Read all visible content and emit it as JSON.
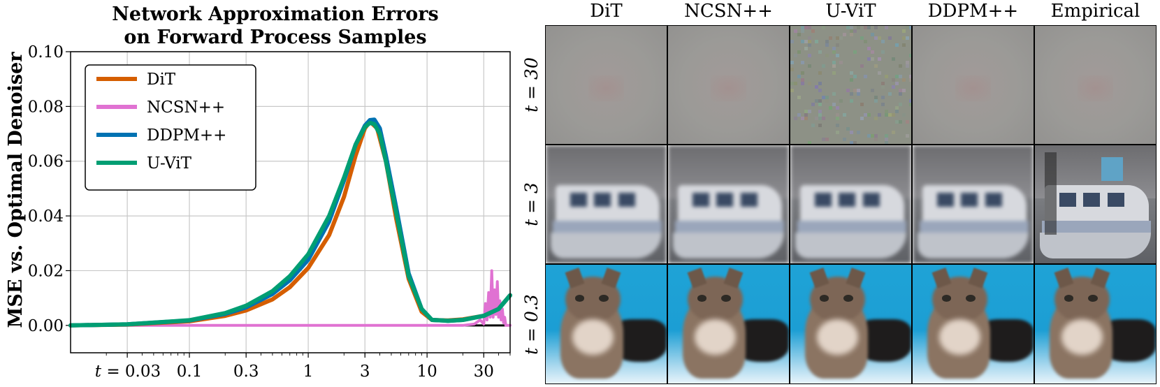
{
  "chart_data": {
    "type": "line",
    "title": "Network Approximation Errors\non Forward Process Samples",
    "title_lines": [
      "Network Approximation Errors",
      "on Forward Process Samples"
    ],
    "xlabel": "",
    "ylabel": "MSE vs. Optimal Denoiser",
    "x_scale": "log",
    "xlim": [
      0.01,
      50
    ],
    "ylim": [
      -0.01,
      0.1
    ],
    "grid": true,
    "legend_position": "top-left",
    "x_ticks": [
      0.03,
      0.1,
      0.3,
      1,
      3,
      10,
      30
    ],
    "x_tick_labels": [
      "t = 0.03",
      "0.1",
      "0.3",
      "1",
      "3",
      "10",
      "30"
    ],
    "y_ticks": [
      0.0,
      0.02,
      0.04,
      0.06,
      0.08,
      0.1
    ],
    "y_tick_labels": [
      "0.00",
      "0.02",
      "0.04",
      "0.06",
      "0.08",
      "0.10"
    ],
    "zero_line": 0.0,
    "series": [
      {
        "name": "DiT",
        "color": "#d55e00",
        "x": [
          0.01,
          0.03,
          0.1,
          0.2,
          0.3,
          0.5,
          0.7,
          1,
          1.5,
          2,
          2.5,
          3,
          3.3,
          3.8,
          4.5,
          5.5,
          7,
          9,
          11,
          15,
          20,
          30,
          40,
          50
        ],
        "y": [
          0.0,
          0.0003,
          0.0015,
          0.0035,
          0.0055,
          0.0095,
          0.014,
          0.021,
          0.033,
          0.047,
          0.062,
          0.072,
          0.0745,
          0.072,
          0.06,
          0.039,
          0.017,
          0.005,
          0.002,
          0.0018,
          0.0022,
          0.0035,
          0.006,
          0.011
        ]
      },
      {
        "name": "NCSN++",
        "color": "#e072d2",
        "x": [
          0.01,
          0.1,
          1,
          3,
          10,
          20,
          25,
          28,
          30,
          31,
          32,
          33,
          34,
          35,
          36,
          37,
          38,
          39,
          40,
          41,
          42,
          43,
          44,
          45,
          46,
          50
        ],
        "y": [
          0.0,
          0.0,
          0.0,
          0.0,
          0.0,
          0.0,
          0.0005,
          0.002,
          0.0005,
          0.008,
          0.002,
          0.012,
          0.003,
          0.02,
          0.003,
          0.013,
          0.004,
          0.016,
          0.003,
          0.009,
          0.002,
          0.006,
          0.001,
          0.003,
          0.0,
          0.0
        ]
      },
      {
        "name": "DDPM++",
        "color": "#0072b2",
        "x": [
          0.01,
          0.03,
          0.1,
          0.2,
          0.3,
          0.5,
          0.7,
          1,
          1.5,
          2,
          2.5,
          3,
          3.3,
          3.6,
          4,
          4.5,
          5.5,
          7,
          9,
          11,
          15,
          20,
          30,
          40,
          50
        ],
        "y": [
          0.0,
          0.0004,
          0.0018,
          0.0042,
          0.0066,
          0.0115,
          0.0165,
          0.024,
          0.038,
          0.053,
          0.066,
          0.073,
          0.075,
          0.0752,
          0.072,
          0.062,
          0.043,
          0.019,
          0.006,
          0.002,
          0.0017,
          0.002,
          0.0035,
          0.006,
          0.011
        ]
      },
      {
        "name": "U-ViT",
        "color": "#009e73",
        "x": [
          0.01,
          0.03,
          0.1,
          0.2,
          0.3,
          0.5,
          0.7,
          1,
          1.5,
          2,
          2.5,
          3,
          3.3,
          3.6,
          4,
          4.5,
          5.5,
          7,
          9,
          11,
          15,
          20,
          30,
          40,
          50
        ],
        "y": [
          0.0,
          0.0004,
          0.0019,
          0.0045,
          0.0072,
          0.0125,
          0.018,
          0.026,
          0.04,
          0.054,
          0.066,
          0.0725,
          0.074,
          0.0735,
          0.07,
          0.06,
          0.041,
          0.018,
          0.006,
          0.002,
          0.0017,
          0.002,
          0.0035,
          0.006,
          0.011
        ]
      }
    ]
  },
  "grid": {
    "columns": [
      "DiT",
      "NCSN++",
      "U-ViT",
      "DDPM++",
      "Empirical"
    ],
    "rows": [
      {
        "label": "t = 30",
        "kind": "gray-noise"
      },
      {
        "label": "t = 3",
        "kind": "boat"
      },
      {
        "label": "t = 0.3",
        "kind": "cat"
      }
    ],
    "cells": [
      [
        "blurry gray",
        "blurry gray",
        "noisy gray",
        "blurry gray",
        "blurry gray"
      ],
      [
        "blurry boat",
        "blurry boat",
        "blurry boat",
        "blurry boat",
        "sharp boat"
      ],
      [
        "cat",
        "cat",
        "cat",
        "cat",
        "cat"
      ]
    ]
  }
}
